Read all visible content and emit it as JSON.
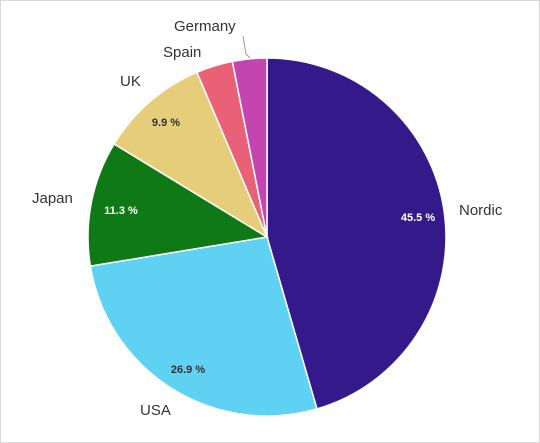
{
  "chart_data": {
    "type": "pie",
    "title": "",
    "start": "12 o'clock",
    "direction": "clockwise",
    "slices": [
      {
        "label": "Nordic",
        "value": 45.5,
        "value_label": "45.5 %",
        "color": "#33198a",
        "label_color": "#ffffff"
      },
      {
        "label": "USA",
        "value": 26.9,
        "value_label": "26.9 %",
        "color": "#5fd1f2",
        "label_color": "#333333"
      },
      {
        "label": "Japan",
        "value": 11.3,
        "value_label": "11.3 %",
        "color": "#0f7a15",
        "label_color": "#ffffff"
      },
      {
        "label": "UK",
        "value": 9.9,
        "value_label": "9.9 %",
        "color": "#e6cd7a",
        "label_color": "#333333"
      },
      {
        "label": "Spain",
        "value": 3.3,
        "value_label": "",
        "color": "#e96176",
        "label_color": "#333333"
      },
      {
        "label": "Germany",
        "value": 3.1,
        "value_label": "",
        "color": "#c445b0",
        "label_color": "#333333"
      }
    ]
  }
}
